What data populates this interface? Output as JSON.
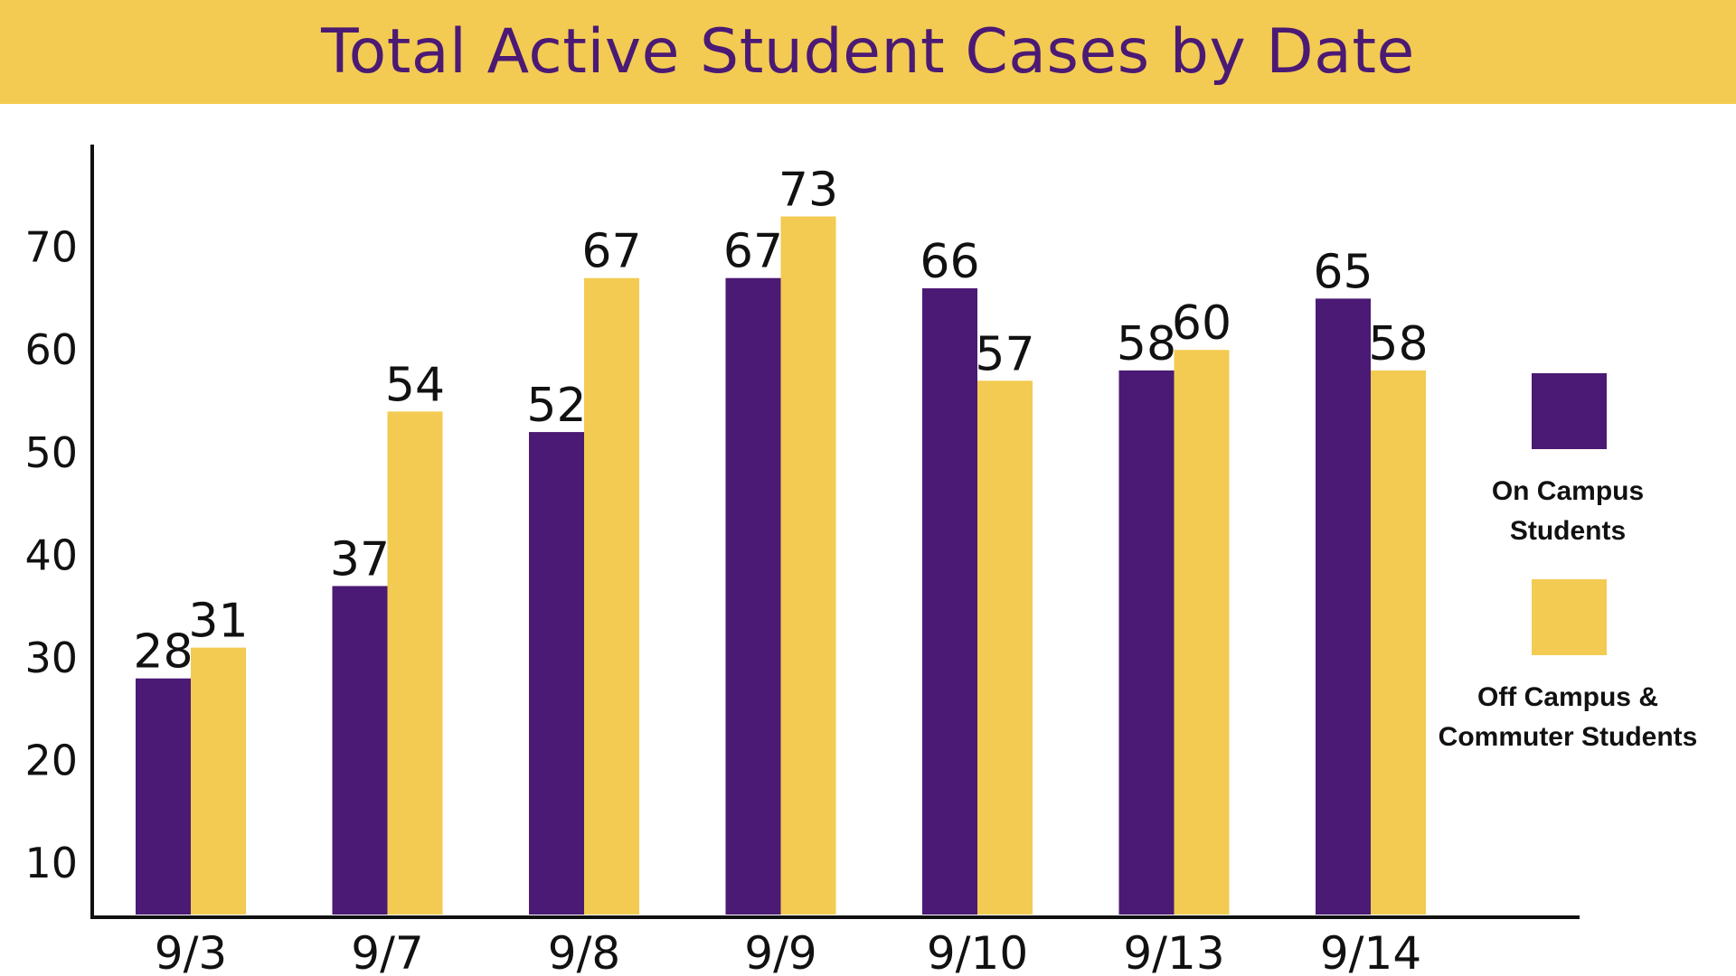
{
  "colors": {
    "title_band": "#F3CB52",
    "title_text": "#4B1A74",
    "axis": "#111111",
    "background": "#FFFFFF"
  },
  "chart_data": {
    "type": "bar",
    "title": "Total Active Student Cases by Date",
    "xlabel": "",
    "ylabel": "",
    "categories": [
      "9/3",
      "9/7",
      "9/8",
      "9/9",
      "9/10",
      "9/13",
      "9/14"
    ],
    "series": [
      {
        "name": "On Campus Students",
        "legend_lines": [
          "On Campus",
          "Students"
        ],
        "color": "#4B1A74",
        "values": [
          28,
          37,
          52,
          67,
          66,
          58,
          65
        ]
      },
      {
        "name": "Off Campus & Commuter Students",
        "legend_lines": [
          "Off Campus &",
          "Commuter Students"
        ],
        "color": "#F3CB52",
        "values": [
          31,
          54,
          67,
          73,
          57,
          60,
          58
        ]
      }
    ],
    "yticks": [
      10,
      20,
      30,
      40,
      50,
      60,
      70
    ],
    "ylim": [
      5,
      80
    ],
    "grid": false,
    "legend": "right",
    "data_labels": true
  }
}
